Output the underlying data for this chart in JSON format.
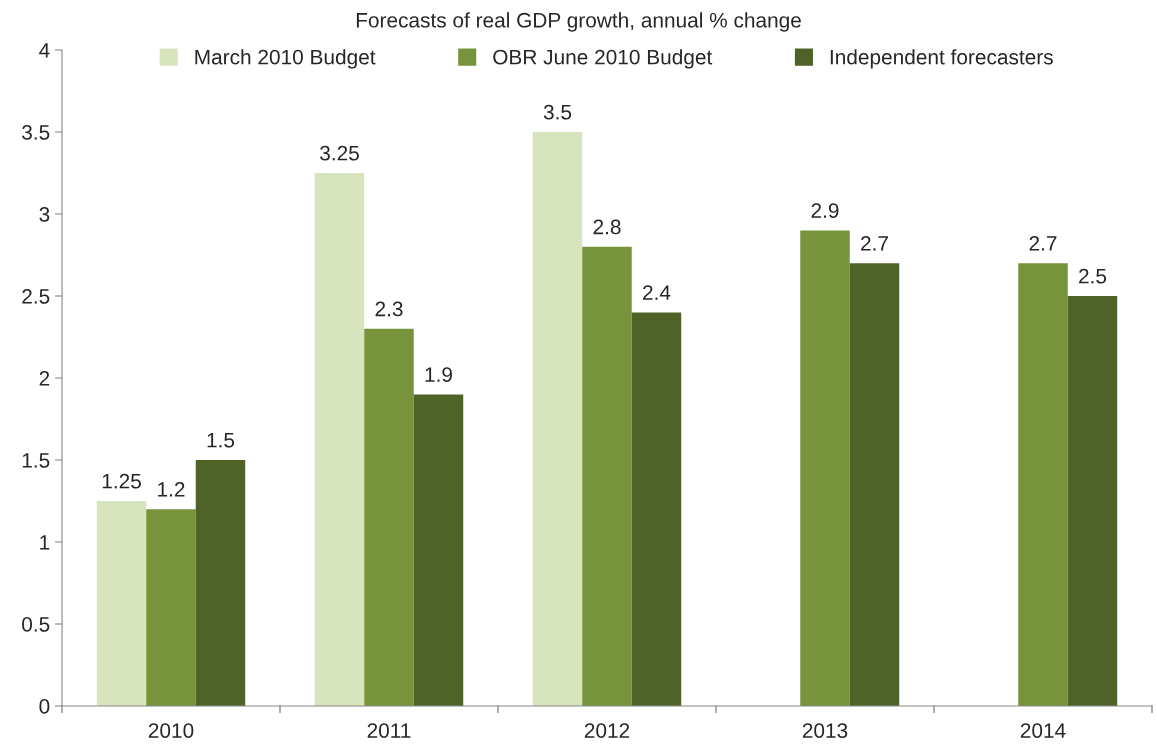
{
  "chart_data": {
    "type": "bar",
    "title": "Forecasts of real GDP growth, annual % change",
    "categories": [
      "2010",
      "2011",
      "2012",
      "2013",
      "2014"
    ],
    "series": [
      {
        "name": "March 2010 Budget",
        "color": "#d7e4bd",
        "values": [
          1.25,
          3.25,
          3.5,
          null,
          null
        ]
      },
      {
        "name": "OBR June 2010 Budget",
        "color": "#77933c",
        "values": [
          1.2,
          2.3,
          2.8,
          2.9,
          2.7
        ]
      },
      {
        "name": "Independent forecasters",
        "color": "#4f6228",
        "values": [
          1.5,
          1.9,
          2.4,
          2.7,
          2.5
        ]
      }
    ],
    "ylim": [
      0,
      4
    ],
    "yticks": [
      0,
      0.5,
      1,
      1.5,
      2,
      2.5,
      3,
      3.5,
      4
    ],
    "data_labels": true,
    "grid": false,
    "legend": "top"
  }
}
